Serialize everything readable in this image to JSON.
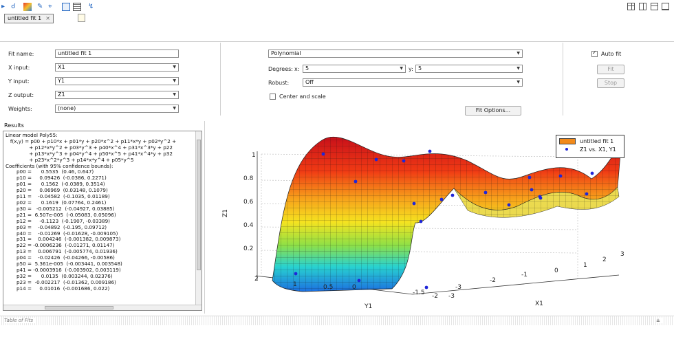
{
  "tabs": {
    "active": "untitled fit 1"
  },
  "fit": {
    "name_label": "Fit name:",
    "name_value": "untitled fit 1",
    "x_label": "X input:",
    "x_value": "X1",
    "y_label": "Y input:",
    "y_value": "Y1",
    "z_label": "Z output:",
    "z_value": "Z1",
    "w_label": "Weights:",
    "w_value": "(none)"
  },
  "model": {
    "type": "Polynomial",
    "degrees_label": "Degrees:",
    "x_label": "x:",
    "x_value": "5",
    "y_label": "y:",
    "y_value": "5",
    "robust_label": "Robust:",
    "robust_value": "Off",
    "center_label": "Center and scale",
    "fit_options": "Fit Options..."
  },
  "controls": {
    "auto_fit": "Auto fit",
    "fit": "Fit",
    "stop": "Stop"
  },
  "results": {
    "header": "Results",
    "text": "Linear model Poly55:\n   f(x,y) = p00 + p10*x + p01*y + p20*x^2 + p11*x*y + p02*y^2 +\n               + p12*x*y^2 + p03*y^3 + p40*x^4 + p31*x^3*y + p22\n               + p13*x*y^3 + p04*y^4 + p50*x^5 + p41*x^4*y + p32\n               + p23*x^2*y^3 + p14*x*y^4 + p05*y^5\nCoefficients (with 95% confidence bounds):\n       p00 =      0.5535  (0.46, 0.647)\n       p10 =     0.09426  (-0.0386, 0.2271)\n       p01 =      0.1562  (-0.0389, 0.3514)\n       p20 =     0.06969  (0.03148, 0.1079)\n       p11 =    -0.04582  (-0.1035, 0.01189)\n       p02 =      0.1619  (0.07764, 0.2461)\n       p30 =   -0.005212  (-0.04927, 0.03885)\n       p21 =  6.507e-005  (-0.05083, 0.05096)\n       p12 =     -0.1123  (-0.1907, -0.03389)\n       p03 =    -0.04892  (-0.195, 0.09712)\n       p40 =    -0.01269  (-0.01628, -0.009105)\n       p31 =    0.004246  (-0.001382, 0.009873)\n       p22 = -0.0006236  (-0.01271, 0.01147)\n       p13 =    0.006791  (-0.005774, 0.01936)\n       p04 =    -0.02426  (-0.04266, -0.00586)\n       p50 =  5.361e-005  (-0.003441, 0.003548)\n       p41 = -0.0003916  (-0.003902, 0.003119)\n       p32 =      0.0135  (0.003244, 0.02376)\n       p23 =  -0.002217  (-0.01362, 0.009186)\n       p14 =     0.01016  (-0.001686, 0.022)"
  },
  "statusbar": {
    "label": "Table of Fits"
  },
  "legend": {
    "fit": "untitled fit 1",
    "data": "Z1 vs. X1, Y1"
  },
  "colors": {
    "accent_orange": "#f28a1b",
    "data_points": "#1f26d8",
    "surface_high": "#d7191c",
    "surface_low": "#2b83ba"
  },
  "chart_data": {
    "type": "surface",
    "zlabel": "Z1",
    "xlabel": "X1",
    "ylabel": "Y1",
    "z_ticks": [
      "0.2",
      "0.4",
      "0.6",
      "0.8",
      "1"
    ],
    "y_ticks": [
      "2",
      "1",
      "0.5",
      "0",
      "-1.5",
      "-2",
      "-3"
    ],
    "x_ticks": [
      "-3",
      "-2",
      "-1",
      "0",
      "1",
      "2",
      "3"
    ],
    "grid": true,
    "legend_position": "top-right"
  }
}
